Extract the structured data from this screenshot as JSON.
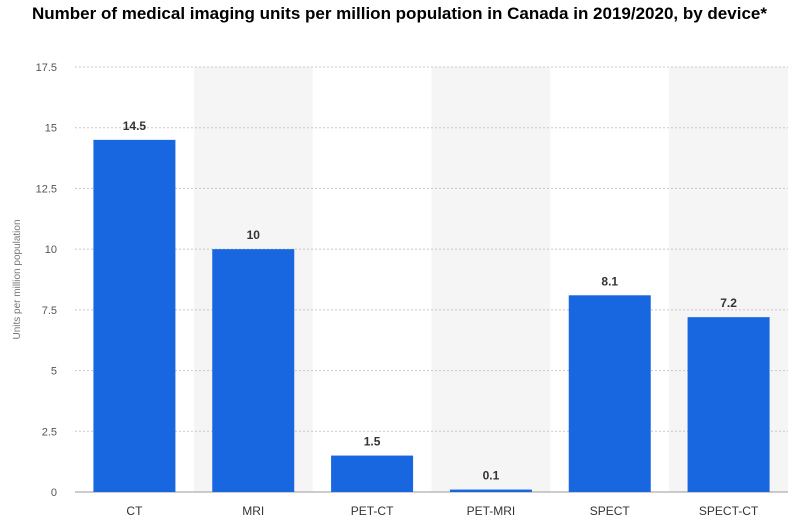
{
  "chart_data": {
    "type": "bar",
    "title": "Number of medical imaging units per million population in Canada in 2019/2020, by device*",
    "xlabel": "",
    "ylabel": "Units per million population",
    "categories": [
      "CT",
      "MRI",
      "PET-CT",
      "PET-MRI",
      "SPECT",
      "SPECT-CT"
    ],
    "values": [
      14.5,
      10,
      1.5,
      0.1,
      8.1,
      7.2
    ],
    "data_labels": [
      "14.5",
      "10",
      "1.5",
      "0.1",
      "8.1",
      "7.2"
    ],
    "ylim": [
      0,
      17.5
    ],
    "yticks": [
      0,
      2.5,
      5,
      7.5,
      10,
      12.5,
      15,
      17.5
    ],
    "ytick_labels": [
      "0",
      "2.5",
      "5",
      "7.5",
      "10",
      "12.5",
      "15",
      "17.5"
    ],
    "grid": true,
    "legend": "none",
    "colors": {
      "bar": "#1866e0",
      "band": "#f5f5f5",
      "grid": "#c8c8c8"
    }
  }
}
